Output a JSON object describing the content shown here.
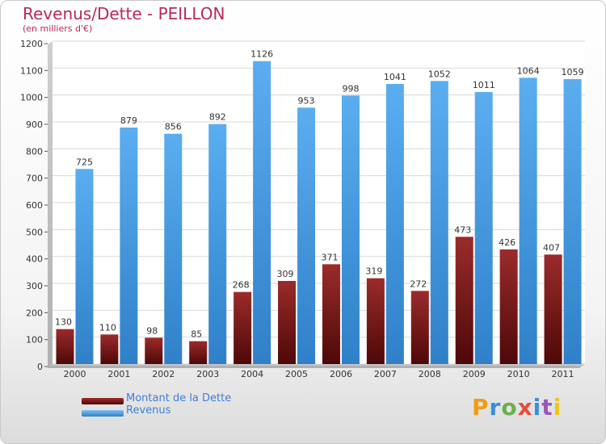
{
  "title": "Revenus/Dette - PEILLON",
  "subtitle": "(en milliers d'€)",
  "logo": {
    "letters": [
      "P",
      "r",
      "o",
      "x",
      "i",
      "t",
      "i"
    ],
    "colors": [
      "#f39c12",
      "#3c8ed8",
      "#6ab04c",
      "#e74c3c",
      "#3c8ed8",
      "#9b59b6",
      "#f1c40f"
    ]
  },
  "colors": {
    "dette": "#7a1b1b",
    "revenus": "#4a9ee6",
    "title": "#b8285a",
    "legend_text": "#3d7fd6"
  },
  "chart_data": {
    "type": "bar",
    "title": "Revenus/Dette - PEILLON",
    "ylabel": "(en milliers d'€)",
    "xlabel": "",
    "ylim": [
      0,
      1200
    ],
    "yticks": [
      0,
      100,
      200,
      300,
      400,
      500,
      600,
      700,
      800,
      900,
      1000,
      1100,
      1200
    ],
    "categories": [
      "2000",
      "2001",
      "2002",
      "2003",
      "2004",
      "2005",
      "2006",
      "2007",
      "2008",
      "2009",
      "2010",
      "2011"
    ],
    "series": [
      {
        "name": "Montant de la Dette",
        "values": [
          130,
          110,
          98,
          85,
          268,
          309,
          371,
          319,
          272,
          473,
          426,
          407
        ]
      },
      {
        "name": "Revenus",
        "values": [
          725,
          879,
          856,
          892,
          1126,
          953,
          998,
          1041,
          1052,
          1011,
          1064,
          1059
        ]
      }
    ],
    "legend_position": "bottom-left",
    "grid": true
  }
}
